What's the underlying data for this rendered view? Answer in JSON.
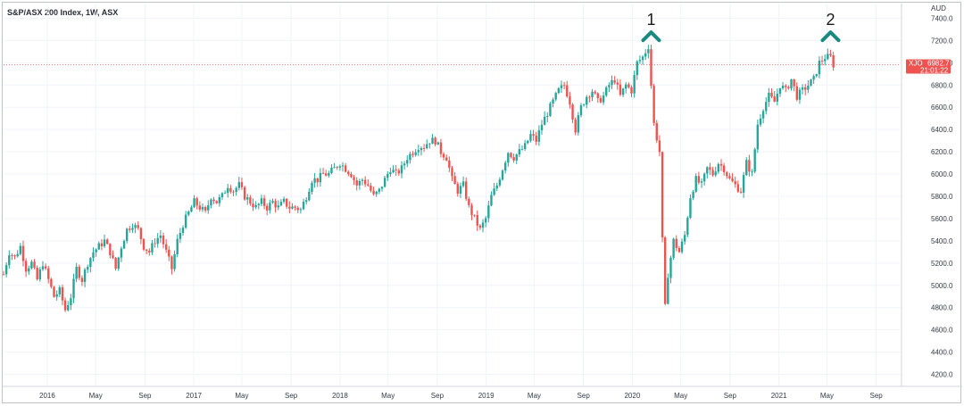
{
  "chart_data": {
    "type": "candlestick",
    "title": "S&P/ASX 200 Index, 1W, ASX",
    "currency": "AUD",
    "symbol": "XJO",
    "last_price": "6982.7",
    "countdown": "21:01:22",
    "ylim": [
      4100,
      7500
    ],
    "y_ticks": [
      "7400.0",
      "7200.0",
      "7000.0",
      "6800.0",
      "6600.0",
      "6400.0",
      "6200.0",
      "6000.0",
      "5800.0",
      "5600.0",
      "5400.0",
      "5200.0",
      "5000.0",
      "4800.0",
      "4600.0",
      "4400.0",
      "4200.0"
    ],
    "y_tick_values": [
      7400,
      7200,
      7000,
      6800,
      6600,
      6400,
      6200,
      6000,
      5800,
      5600,
      5400,
      5200,
      5000,
      4800,
      4600,
      4400,
      4200
    ],
    "x_ticks": [
      {
        "label": "2016",
        "date": "2016-01-01"
      },
      {
        "label": "May",
        "date": "2016-05-01"
      },
      {
        "label": "Sep",
        "date": "2016-09-01"
      },
      {
        "label": "2017",
        "date": "2017-01-01"
      },
      {
        "label": "May",
        "date": "2017-05-01"
      },
      {
        "label": "Sep",
        "date": "2017-09-01"
      },
      {
        "label": "2018",
        "date": "2018-01-01"
      },
      {
        "label": "May",
        "date": "2018-05-01"
      },
      {
        "label": "Sep",
        "date": "2018-09-01"
      },
      {
        "label": "2019",
        "date": "2019-01-01"
      },
      {
        "label": "May",
        "date": "2019-05-01"
      },
      {
        "label": "Sep",
        "date": "2019-09-01"
      },
      {
        "label": "2020",
        "date": "2020-01-01"
      },
      {
        "label": "May",
        "date": "2020-05-01"
      },
      {
        "label": "Sep",
        "date": "2020-09-01"
      },
      {
        "label": "2021",
        "date": "2021-01-01"
      },
      {
        "label": "May",
        "date": "2021-05-01"
      },
      {
        "label": "Sep",
        "date": "2021-09-01"
      }
    ],
    "x_range": [
      "2015-09-14",
      "2021-11-01"
    ],
    "up_color": "#26a69a",
    "down_color": "#ef5350",
    "grid": true,
    "annotations": [
      {
        "label": "1",
        "date": "2020-02-17",
        "price": 7250
      },
      {
        "label": "2",
        "date": "2021-05-10",
        "price": 7250
      }
    ],
    "path_points": [
      [
        "2015-09-14",
        5100
      ],
      [
        "2015-09-28",
        5300
      ],
      [
        "2015-10-12",
        5250
      ],
      [
        "2015-10-26",
        5350
      ],
      [
        "2015-11-09",
        5150
      ],
      [
        "2015-11-23",
        5200
      ],
      [
        "2015-12-07",
        5050
      ],
      [
        "2015-12-21",
        5200
      ],
      [
        "2016-01-04",
        5050
      ],
      [
        "2016-01-18",
        4900
      ],
      [
        "2016-02-01",
        4950
      ],
      [
        "2016-02-15",
        4780
      ],
      [
        "2016-02-29",
        4900
      ],
      [
        "2016-03-14",
        5150
      ],
      [
        "2016-03-28",
        5050
      ],
      [
        "2016-04-11",
        5200
      ],
      [
        "2016-04-25",
        5300
      ],
      [
        "2016-05-09",
        5350
      ],
      [
        "2016-05-23",
        5400
      ],
      [
        "2016-06-06",
        5300
      ],
      [
        "2016-06-20",
        5150
      ],
      [
        "2016-07-04",
        5350
      ],
      [
        "2016-07-18",
        5500
      ],
      [
        "2016-08-01",
        5550
      ],
      [
        "2016-08-15",
        5500
      ],
      [
        "2016-08-29",
        5350
      ],
      [
        "2016-09-12",
        5300
      ],
      [
        "2016-09-26",
        5400
      ],
      [
        "2016-10-10",
        5450
      ],
      [
        "2016-10-24",
        5300
      ],
      [
        "2016-11-07",
        5150
      ],
      [
        "2016-11-21",
        5400
      ],
      [
        "2016-12-05",
        5550
      ],
      [
        "2016-12-19",
        5650
      ],
      [
        "2017-01-02",
        5750
      ],
      [
        "2017-01-16",
        5700
      ],
      [
        "2017-01-30",
        5650
      ],
      [
        "2017-02-13",
        5800
      ],
      [
        "2017-02-27",
        5750
      ],
      [
        "2017-03-13",
        5800
      ],
      [
        "2017-03-27",
        5900
      ],
      [
        "2017-04-10",
        5850
      ],
      [
        "2017-04-24",
        5900
      ],
      [
        "2017-05-08",
        5800
      ],
      [
        "2017-05-22",
        5750
      ],
      [
        "2017-06-05",
        5700
      ],
      [
        "2017-06-19",
        5750
      ],
      [
        "2017-07-03",
        5700
      ],
      [
        "2017-07-17",
        5750
      ],
      [
        "2017-07-31",
        5700
      ],
      [
        "2017-08-14",
        5750
      ],
      [
        "2017-08-28",
        5700
      ],
      [
        "2017-09-11",
        5700
      ],
      [
        "2017-09-25",
        5680
      ],
      [
        "2017-10-09",
        5800
      ],
      [
        "2017-10-23",
        5950
      ],
      [
        "2017-11-06",
        5950
      ],
      [
        "2017-11-20",
        6000
      ],
      [
        "2017-12-04",
        6000
      ],
      [
        "2017-12-18",
        6050
      ],
      [
        "2018-01-01",
        6100
      ],
      [
        "2018-01-15",
        6050
      ],
      [
        "2018-01-29",
        6000
      ],
      [
        "2018-02-12",
        5900
      ],
      [
        "2018-02-26",
        5950
      ],
      [
        "2018-03-12",
        5900
      ],
      [
        "2018-03-26",
        5800
      ],
      [
        "2018-04-09",
        5850
      ],
      [
        "2018-04-23",
        5950
      ],
      [
        "2018-05-07",
        6050
      ],
      [
        "2018-05-21",
        6000
      ],
      [
        "2018-06-04",
        6050
      ],
      [
        "2018-06-18",
        6150
      ],
      [
        "2018-07-02",
        6200
      ],
      [
        "2018-07-16",
        6250
      ],
      [
        "2018-07-30",
        6250
      ],
      [
        "2018-08-13",
        6300
      ],
      [
        "2018-08-27",
        6300
      ],
      [
        "2018-09-10",
        6200
      ],
      [
        "2018-09-24",
        6150
      ],
      [
        "2018-10-08",
        5950
      ],
      [
        "2018-10-22",
        5850
      ],
      [
        "2018-11-05",
        5900
      ],
      [
        "2018-11-19",
        5700
      ],
      [
        "2018-12-03",
        5600
      ],
      [
        "2018-12-17",
        5500
      ],
      [
        "2018-12-31",
        5600
      ],
      [
        "2019-01-14",
        5800
      ],
      [
        "2019-01-28",
        5900
      ],
      [
        "2019-02-11",
        6050
      ],
      [
        "2019-02-25",
        6200
      ],
      [
        "2019-03-11",
        6150
      ],
      [
        "2019-03-25",
        6200
      ],
      [
        "2019-04-08",
        6250
      ],
      [
        "2019-04-22",
        6350
      ],
      [
        "2019-05-06",
        6300
      ],
      [
        "2019-05-20",
        6450
      ],
      [
        "2019-06-03",
        6550
      ],
      [
        "2019-06-17",
        6650
      ],
      [
        "2019-07-01",
        6750
      ],
      [
        "2019-07-15",
        6800
      ],
      [
        "2019-07-29",
        6650
      ],
      [
        "2019-08-12",
        6400
      ],
      [
        "2019-08-26",
        6600
      ],
      [
        "2019-09-09",
        6700
      ],
      [
        "2019-09-23",
        6750
      ],
      [
        "2019-10-07",
        6650
      ],
      [
        "2019-10-21",
        6700
      ],
      [
        "2019-11-04",
        6800
      ],
      [
        "2019-11-18",
        6850
      ],
      [
        "2019-12-02",
        6700
      ],
      [
        "2019-12-16",
        6800
      ],
      [
        "2019-12-30",
        6750
      ],
      [
        "2020-01-13",
        7000
      ],
      [
        "2020-01-27",
        7050
      ],
      [
        "2020-02-10",
        7150
      ],
      [
        "2020-02-24",
        6450
      ],
      [
        "2020-03-09",
        6200
      ],
      [
        "2020-03-16",
        5400
      ],
      [
        "2020-03-23",
        4800
      ],
      [
        "2020-03-30",
        5100
      ],
      [
        "2020-04-13",
        5400
      ],
      [
        "2020-04-27",
        5300
      ],
      [
        "2020-05-11",
        5450
      ],
      [
        "2020-05-25",
        5800
      ],
      [
        "2020-06-08",
        5950
      ],
      [
        "2020-06-22",
        5900
      ],
      [
        "2020-07-06",
        6050
      ],
      [
        "2020-07-20",
        6000
      ],
      [
        "2020-08-03",
        6100
      ],
      [
        "2020-08-17",
        6050
      ],
      [
        "2020-08-31",
        5950
      ],
      [
        "2020-09-14",
        5900
      ],
      [
        "2020-09-28",
        5850
      ],
      [
        "2020-10-12",
        6100
      ],
      [
        "2020-10-26",
        6000
      ],
      [
        "2020-11-09",
        6450
      ],
      [
        "2020-11-23",
        6600
      ],
      [
        "2020-12-07",
        6700
      ],
      [
        "2020-12-21",
        6650
      ],
      [
        "2021-01-04",
        6800
      ],
      [
        "2021-01-18",
        6750
      ],
      [
        "2021-02-01",
        6850
      ],
      [
        "2021-02-15",
        6700
      ],
      [
        "2021-03-01",
        6750
      ],
      [
        "2021-03-15",
        6800
      ],
      [
        "2021-03-29",
        6850
      ],
      [
        "2021-04-12",
        7000
      ],
      [
        "2021-04-26",
        7050
      ],
      [
        "2021-05-10",
        7050
      ],
      [
        "2021-05-17",
        6983
      ]
    ]
  }
}
